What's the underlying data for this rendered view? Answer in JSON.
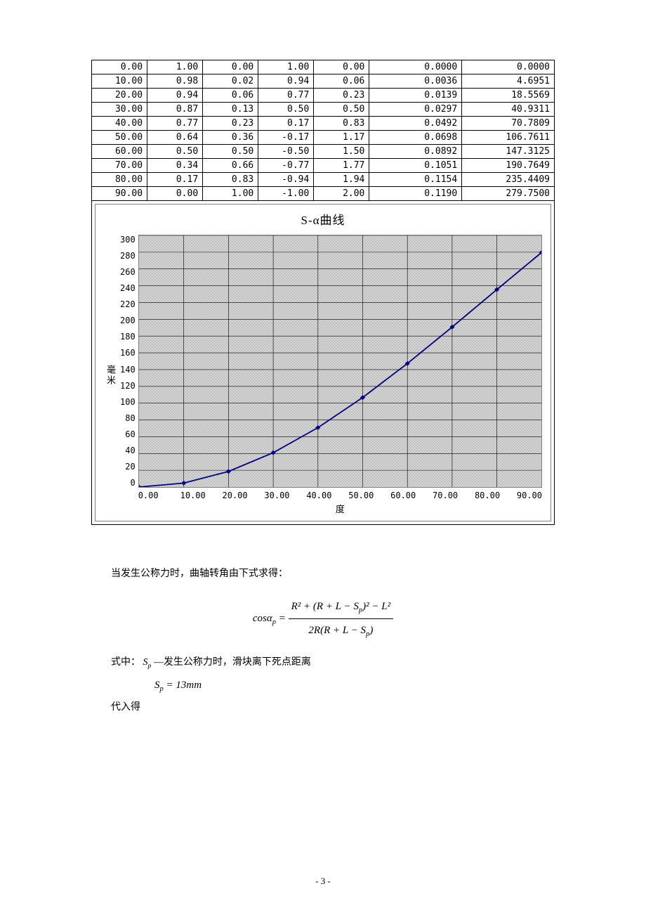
{
  "table": {
    "rows": [
      [
        "0.00",
        "1.00",
        "0.00",
        "1.00",
        "0.00",
        "0.0000",
        "0.0000"
      ],
      [
        "10.00",
        "0.98",
        "0.02",
        "0.94",
        "0.06",
        "0.0036",
        "4.6951"
      ],
      [
        "20.00",
        "0.94",
        "0.06",
        "0.77",
        "0.23",
        "0.0139",
        "18.5569"
      ],
      [
        "30.00",
        "0.87",
        "0.13",
        "0.50",
        "0.50",
        "0.0297",
        "40.9311"
      ],
      [
        "40.00",
        "0.77",
        "0.23",
        "0.17",
        "0.83",
        "0.0492",
        "70.7809"
      ],
      [
        "50.00",
        "0.64",
        "0.36",
        "-0.17",
        "1.17",
        "0.0698",
        "106.7611"
      ],
      [
        "60.00",
        "0.50",
        "0.50",
        "-0.50",
        "1.50",
        "0.0892",
        "147.3125"
      ],
      [
        "70.00",
        "0.34",
        "0.66",
        "-0.77",
        "1.77",
        "0.1051",
        "190.7649"
      ],
      [
        "80.00",
        "0.17",
        "0.83",
        "-0.94",
        "1.94",
        "0.1154",
        "235.4409"
      ],
      [
        "90.00",
        "0.00",
        "1.00",
        "-1.00",
        "2.00",
        "0.1190",
        "279.7500"
      ]
    ]
  },
  "chart": {
    "title": "S-α曲线",
    "y_label": "毫米",
    "x_label": "度",
    "y_ticks": [
      "300",
      "280",
      "260",
      "240",
      "220",
      "200",
      "180",
      "160",
      "140",
      "120",
      "100",
      "80",
      "60",
      "40",
      "20",
      "0"
    ],
    "x_ticks_numeric": [
      0,
      10,
      20,
      30,
      40,
      50,
      60,
      70,
      80,
      90
    ],
    "x_ticks": [
      "0.00",
      "10.00",
      "20.00",
      "30.00",
      "40.00",
      "50.00",
      "60.00",
      "70.00",
      "80.00",
      "90.00"
    ],
    "x_domain": [
      0,
      90
    ],
    "y_domain": [
      0,
      300
    ],
    "series_y": [
      0.0,
      4.6951,
      18.5569,
      40.9311,
      70.7809,
      106.7611,
      147.3125,
      190.7649,
      235.4409,
      279.75
    ],
    "line_color": "#000080",
    "marker_color": "#000080",
    "marker_size": 3.5,
    "line_width": 1.8,
    "grid_color": "#000000",
    "grid_width": 0.6,
    "plot_bg": "#c0c0c0"
  },
  "text": {
    "para1": "当发生公称力时，曲轴转角由下式求得：",
    "eq_lhs": "cosα",
    "eq_sub": "p",
    "eq_eq": " = ",
    "eq_num": "R² + (R + L − S",
    "eq_num2": ")² − L²",
    "eq_den": "2R(R + L − S",
    "eq_den2": ")",
    "label_prefix": "式中：",
    "sp_sym": "S",
    "sp_sub": "p",
    "sp_desc": " —发生公称力时，滑块离下死点距离",
    "sp_value_lhs": "S",
    "sp_value_eq": " = 13mm",
    "para3": "代入得"
  },
  "page_number": "- 3 -"
}
